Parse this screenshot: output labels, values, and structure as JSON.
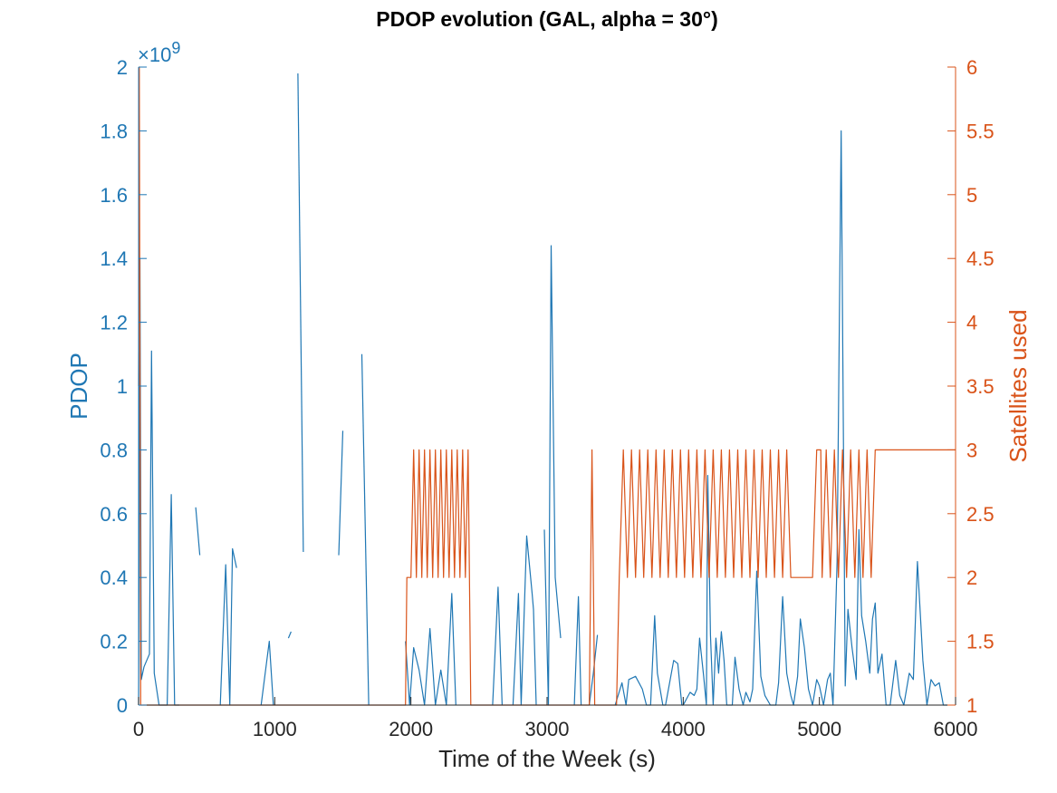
{
  "chart_data": {
    "type": "line",
    "title": "PDOP evolution (GAL, alpha = 30°)",
    "xlabel": "Time of the Week (s)",
    "xlim": [
      0,
      6000
    ],
    "xticks": [
      "0",
      "1000",
      "2000",
      "3000",
      "4000",
      "5000",
      "6000"
    ],
    "left_axis": {
      "label": "PDOP",
      "exponent_label": "×10",
      "exponent_power": "9",
      "ylim": [
        0,
        2
      ],
      "ticks": [
        "0",
        "0.2",
        "0.4",
        "0.6",
        "0.8",
        "1",
        "1.2",
        "1.4",
        "1.6",
        "1.8",
        "2"
      ],
      "tick_values": [
        0,
        0.2,
        0.4,
        0.6,
        0.8,
        1,
        1.2,
        1.4,
        1.6,
        1.8,
        2
      ]
    },
    "right_axis": {
      "label": "Satellites used",
      "ylim": [
        1,
        6
      ],
      "ticks": [
        "1",
        "1.5",
        "2",
        "2.5",
        "3",
        "3.5",
        "4",
        "4.5",
        "5",
        "5.5",
        "6"
      ],
      "tick_values": [
        1,
        1.5,
        2,
        2.5,
        3,
        3.5,
        4,
        4.5,
        5,
        5.5,
        6
      ]
    },
    "grid": false,
    "colors": {
      "pdop": "#1f77b4",
      "sats": "#d95319",
      "axis": "#262626"
    },
    "series": [
      {
        "axis": "left",
        "units_note": "PDOP values in units of 1e9",
        "segments": [
          [
            [
              0,
              0
            ],
            [
              10,
              1.4
            ],
            [
              20,
              0.08
            ],
            [
              40,
              0.12
            ],
            [
              60,
              0.14
            ],
            [
              80,
              0.16
            ],
            [
              95,
              1.11
            ],
            [
              115,
              0.1
            ],
            [
              150,
              0
            ],
            [
              180,
              0
            ],
            [
              210,
              0
            ],
            [
              240,
              0.66
            ],
            [
              265,
              0
            ],
            [
              300,
              0
            ]
          ],
          [
            [
              420,
              0.62
            ],
            [
              450,
              0.47
            ]
          ],
          [
            [
              600,
              0
            ],
            [
              640,
              0.44
            ],
            [
              670,
              0
            ],
            [
              690,
              0.49
            ],
            [
              720,
              0.43
            ]
          ],
          [
            [
              900,
              0
            ],
            [
              960,
              0.2
            ],
            [
              990,
              0
            ]
          ],
          [
            [
              1100,
              0.21
            ],
            [
              1120,
              0.23
            ]
          ],
          [
            [
              1170,
              1.98
            ],
            [
              1210,
              0.48
            ]
          ],
          [
            [
              1470,
              0.47
            ],
            [
              1500,
              0.86
            ]
          ],
          [
            [
              1640,
              1.1
            ],
            [
              1690,
              0
            ]
          ],
          [
            [
              1960,
              0.2
            ],
            [
              1990,
              0
            ],
            [
              2020,
              0.18
            ],
            [
              2060,
              0.11
            ],
            [
              2100,
              0
            ],
            [
              2140,
              0.24
            ],
            [
              2180,
              0
            ],
            [
              2220,
              0.11
            ],
            [
              2260,
              0
            ],
            [
              2300,
              0.35
            ],
            [
              2330,
              0
            ]
          ],
          [
            [
              2600,
              0
            ],
            [
              2640,
              0.37
            ],
            [
              2670,
              0
            ]
          ],
          [
            [
              2750,
              0
            ],
            [
              2790,
              0.35
            ],
            [
              2810,
              0
            ],
            [
              2850,
              0.53
            ],
            [
              2890,
              0.35
            ],
            [
              2900,
              0.3
            ],
            [
              2920,
              0
            ]
          ],
          [
            [
              2980,
              0.55
            ],
            [
              3010,
              0
            ],
            [
              3030,
              1.44
            ],
            [
              3060,
              0.4
            ],
            [
              3100,
              0.21
            ]
          ],
          [
            [
              3200,
              0
            ],
            [
              3230,
              0.34
            ],
            [
              3250,
              0
            ]
          ],
          [
            [
              3310,
              0
            ],
            [
              3340,
              0.1
            ],
            [
              3370,
              0.22
            ]
          ],
          [
            [
              3500,
              0
            ],
            [
              3550,
              0.07
            ],
            [
              3580,
              0
            ],
            [
              3600,
              0.08
            ],
            [
              3650,
              0.09
            ],
            [
              3700,
              0.05
            ],
            [
              3730,
              0
            ],
            [
              3760,
              0
            ],
            [
              3790,
              0.28
            ],
            [
              3810,
              0.1
            ],
            [
              3850,
              0
            ],
            [
              3870,
              0
            ],
            [
              3900,
              0.07
            ],
            [
              3930,
              0.14
            ],
            [
              3960,
              0.13
            ],
            [
              3990,
              0
            ],
            [
              4000,
              0
            ],
            [
              4050,
              0.04
            ],
            [
              4080,
              0.03
            ],
            [
              4100,
              0.05
            ],
            [
              4120,
              0.21
            ],
            [
              4150,
              0.09
            ],
            [
              4170,
              0
            ],
            [
              4180,
              0.72
            ],
            [
              4200,
              0.22
            ],
            [
              4220,
              0
            ],
            [
              4240,
              0.21
            ],
            [
              4260,
              0.1
            ],
            [
              4280,
              0.23
            ],
            [
              4300,
              0.14
            ],
            [
              4320,
              0
            ],
            [
              4360,
              0
            ],
            [
              4380,
              0.15
            ],
            [
              4410,
              0.05
            ],
            [
              4440,
              0
            ],
            [
              4460,
              0.04
            ],
            [
              4490,
              0.01
            ],
            [
              4510,
              0.05
            ],
            [
              4540,
              0.42
            ],
            [
              4570,
              0.09
            ],
            [
              4600,
              0.03
            ],
            [
              4640,
              0
            ],
            [
              4680,
              0
            ],
            [
              4700,
              0.07
            ],
            [
              4730,
              0.34
            ],
            [
              4760,
              0.1
            ],
            [
              4790,
              0.03
            ],
            [
              4810,
              0
            ],
            [
              4840,
              0.09
            ],
            [
              4860,
              0.27
            ],
            [
              4890,
              0.18
            ],
            [
              4920,
              0.05
            ],
            [
              4950,
              0
            ],
            [
              4980,
              0.08
            ],
            [
              5000,
              0.06
            ],
            [
              5030,
              0
            ],
            [
              5060,
              0.08
            ],
            [
              5080,
              0.1
            ],
            [
              5100,
              0
            ],
            [
              5130,
              0.45
            ],
            [
              5160,
              1.8
            ],
            [
              5190,
              0.06
            ],
            [
              5210,
              0.3
            ],
            [
              5240,
              0.18
            ],
            [
              5270,
              0.08
            ],
            [
              5290,
              0.55
            ],
            [
              5310,
              0.28
            ],
            [
              5340,
              0.2
            ],
            [
              5370,
              0.1
            ],
            [
              5390,
              0.27
            ],
            [
              5410,
              0.32
            ],
            [
              5430,
              0.1
            ],
            [
              5460,
              0.16
            ],
            [
              5490,
              0
            ],
            [
              5520,
              0
            ],
            [
              5560,
              0.14
            ],
            [
              5590,
              0.03
            ],
            [
              5620,
              0
            ],
            [
              5660,
              0.1
            ],
            [
              5690,
              0.08
            ],
            [
              5720,
              0.45
            ],
            [
              5760,
              0.14
            ],
            [
              5790,
              0
            ],
            [
              5820,
              0.08
            ],
            [
              5850,
              0.06
            ],
            [
              5880,
              0.07
            ],
            [
              5910,
              0
            ],
            [
              5940,
              0
            ]
          ]
        ]
      },
      {
        "axis": "right",
        "name": "",
        "points": [
          [
            0,
            3.5
          ],
          [
            5,
            6
          ],
          [
            15,
            1
          ],
          [
            1960,
            1
          ],
          [
            1970,
            2
          ],
          [
            2000,
            2
          ],
          [
            2020,
            3
          ],
          [
            2040,
            2
          ],
          [
            2060,
            3
          ],
          [
            2080,
            2
          ],
          [
            2100,
            3
          ],
          [
            2120,
            2
          ],
          [
            2140,
            3
          ],
          [
            2160,
            2
          ],
          [
            2180,
            3
          ],
          [
            2200,
            2
          ],
          [
            2220,
            3
          ],
          [
            2240,
            2
          ],
          [
            2260,
            3
          ],
          [
            2280,
            2
          ],
          [
            2300,
            3
          ],
          [
            2320,
            2
          ],
          [
            2340,
            3
          ],
          [
            2360,
            2
          ],
          [
            2380,
            3
          ],
          [
            2400,
            2
          ],
          [
            2420,
            3
          ],
          [
            2430,
            2
          ],
          [
            2440,
            1
          ],
          [
            3310,
            1
          ],
          [
            3330,
            3
          ],
          [
            3350,
            1
          ],
          [
            3510,
            1
          ],
          [
            3530,
            2
          ],
          [
            3560,
            3
          ],
          [
            3590,
            2
          ],
          [
            3620,
            3
          ],
          [
            3650,
            2
          ],
          [
            3680,
            3
          ],
          [
            3710,
            2
          ],
          [
            3740,
            3
          ],
          [
            3770,
            2
          ],
          [
            3800,
            3
          ],
          [
            3830,
            2
          ],
          [
            3860,
            3
          ],
          [
            3890,
            2
          ],
          [
            3920,
            3
          ],
          [
            3950,
            2
          ],
          [
            3980,
            3
          ],
          [
            4010,
            2
          ],
          [
            4040,
            3
          ],
          [
            4070,
            2
          ],
          [
            4100,
            3
          ],
          [
            4130,
            2
          ],
          [
            4160,
            3
          ],
          [
            4190,
            2
          ],
          [
            4220,
            3
          ],
          [
            4250,
            2
          ],
          [
            4280,
            3
          ],
          [
            4310,
            2
          ],
          [
            4340,
            3
          ],
          [
            4370,
            2
          ],
          [
            4400,
            3
          ],
          [
            4430,
            2
          ],
          [
            4460,
            3
          ],
          [
            4490,
            2
          ],
          [
            4520,
            3
          ],
          [
            4550,
            2
          ],
          [
            4580,
            3
          ],
          [
            4610,
            2
          ],
          [
            4640,
            3
          ],
          [
            4670,
            2
          ],
          [
            4700,
            3
          ],
          [
            4730,
            2
          ],
          [
            4760,
            3
          ],
          [
            4790,
            2
          ],
          [
            4800,
            2
          ],
          [
            4950,
            2
          ],
          [
            4980,
            3
          ],
          [
            5010,
            3
          ],
          [
            5020,
            2
          ],
          [
            5050,
            3
          ],
          [
            5080,
            2
          ],
          [
            5110,
            3
          ],
          [
            5140,
            2
          ],
          [
            5170,
            3
          ],
          [
            5200,
            2
          ],
          [
            5230,
            3
          ],
          [
            5260,
            2
          ],
          [
            5290,
            3
          ],
          [
            5320,
            2
          ],
          [
            5350,
            3
          ],
          [
            5380,
            2
          ],
          [
            5410,
            3
          ],
          [
            5440,
            3
          ],
          [
            6000,
            3
          ]
        ]
      }
    ]
  }
}
